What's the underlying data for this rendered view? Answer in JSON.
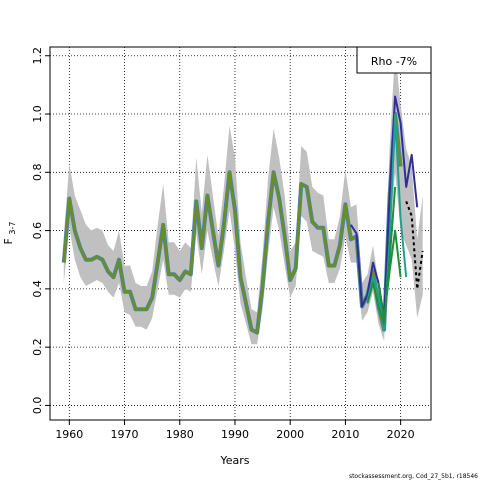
{
  "chart_data": {
    "type": "line",
    "xlabel": "Years",
    "ylabel_main": "F",
    "ylabel_sub": "3-7",
    "xlim": [
      1956.5,
      2025.5
    ],
    "ylim": [
      -0.05,
      1.23
    ],
    "x_ticks": [
      1960,
      1970,
      1980,
      1990,
      2000,
      2010,
      2020
    ],
    "y_ticks": [
      0.0,
      0.2,
      0.4,
      0.6,
      0.8,
      1.0,
      1.2
    ],
    "y_tick_labels": [
      "0.0",
      "0.2",
      "0.4",
      "0.6",
      "0.8",
      "1.0",
      "1.2"
    ],
    "grid": true,
    "legend": {
      "text": "Rho -7%",
      "placement": "top-right"
    },
    "footer": "stockassessment.org, Cod_27_5b1, r18546",
    "colors": {
      "band": "#c0c0c0",
      "main": "#6b8e23",
      "main_outline": "#4682b4",
      "retro_green": "#1f8f3a",
      "retro_blue": "#2f2f9a",
      "retro_teal": "#20a090",
      "forecast": "#000000"
    },
    "series": [
      {
        "x": [
          1959,
          1960,
          1961,
          1962,
          1963,
          1964,
          1965,
          1966,
          1967,
          1968,
          1969,
          1970,
          1971,
          1972,
          1973,
          1974,
          1975,
          1976,
          1977,
          1978,
          1979,
          1980,
          1981,
          1982,
          1983,
          1984,
          1985,
          1986,
          1987,
          1988,
          1989,
          1990,
          1991,
          1992,
          1993,
          1994,
          1995,
          1996,
          1997,
          1998,
          1999,
          2000,
          2001,
          2002,
          2003,
          2004,
          2005,
          2006,
          2007,
          2008,
          2009,
          2010,
          2011,
          2012,
          2013,
          2014,
          2015,
          2016,
          2017,
          2018,
          2019,
          2020
        ],
        "y": [
          0.49,
          0.71,
          0.6,
          0.54,
          0.5,
          0.5,
          0.51,
          0.5,
          0.46,
          0.44,
          0.5,
          0.39,
          0.39,
          0.33,
          0.33,
          0.33,
          0.37,
          0.49,
          0.62,
          0.45,
          0.45,
          0.43,
          0.46,
          0.45,
          0.7,
          0.54,
          0.72,
          0.6,
          0.48,
          0.62,
          0.8,
          0.67,
          0.44,
          0.35,
          0.26,
          0.25,
          0.41,
          0.63,
          0.8,
          0.71,
          0.58,
          0.43,
          0.47,
          0.76,
          0.75,
          0.63,
          0.61,
          0.61,
          0.48,
          0.48,
          0.55,
          0.69,
          0.57,
          0.58,
          0.34,
          0.38,
          0.46,
          0.34,
          0.26,
          0.72,
          1.0,
          0.82
        ]
      },
      {
        "x": [
          2011,
          2012,
          2013,
          2014,
          2015,
          2016,
          2017,
          2018,
          2019,
          2020,
          2021,
          2022,
          2023
        ],
        "y": [
          0.62,
          0.59,
          0.34,
          0.38,
          0.49,
          0.42,
          0.3,
          0.72,
          1.06,
          0.97,
          0.75,
          0.86,
          0.68
        ]
      },
      {
        "x": [
          2014,
          2015,
          2016,
          2017,
          2018,
          2019,
          2020,
          2021
        ],
        "y": [
          0.36,
          0.44,
          0.38,
          0.26,
          0.56,
          1.0,
          0.64,
          0.44
        ]
      },
      {
        "x": [
          2014,
          2015,
          2016,
          2017,
          2018,
          2019
        ],
        "y": [
          0.35,
          0.42,
          0.34,
          0.28,
          0.5,
          0.75
        ]
      },
      {
        "x": [
          2016,
          2017,
          2018,
          2019,
          2020
        ],
        "y": [
          0.42,
          0.3,
          0.46,
          0.6,
          0.44
        ]
      },
      {
        "x": [
          2021,
          2022,
          2023,
          2024
        ],
        "y": [
          0.7,
          0.65,
          0.4,
          0.53
        ]
      }
    ],
    "band": {
      "x": [
        1959,
        1960,
        1961,
        1962,
        1963,
        1964,
        1965,
        1966,
        1967,
        1968,
        1969,
        1970,
        1971,
        1972,
        1973,
        1974,
        1975,
        1976,
        1977,
        1978,
        1979,
        1980,
        1981,
        1982,
        1983,
        1984,
        1985,
        1986,
        1987,
        1988,
        1989,
        1990,
        1991,
        1992,
        1993,
        1994,
        1995,
        1996,
        1997,
        1998,
        1999,
        2000,
        2001,
        2002,
        2003,
        2004,
        2005,
        2006,
        2007,
        2008,
        2009,
        2010,
        2011,
        2012,
        2013,
        2014,
        2015,
        2016,
        2017,
        2018,
        2019,
        2020,
        2021,
        2022,
        2023,
        2024
      ],
      "lower": [
        0.42,
        0.61,
        0.5,
        0.44,
        0.41,
        0.42,
        0.43,
        0.42,
        0.39,
        0.37,
        0.42,
        0.32,
        0.31,
        0.27,
        0.27,
        0.26,
        0.3,
        0.4,
        0.5,
        0.38,
        0.38,
        0.37,
        0.4,
        0.39,
        0.59,
        0.45,
        0.6,
        0.5,
        0.41,
        0.53,
        0.67,
        0.53,
        0.35,
        0.28,
        0.21,
        0.21,
        0.33,
        0.52,
        0.68,
        0.6,
        0.48,
        0.37,
        0.41,
        0.65,
        0.63,
        0.53,
        0.52,
        0.51,
        0.42,
        0.42,
        0.47,
        0.58,
        0.49,
        0.49,
        0.29,
        0.32,
        0.39,
        0.28,
        0.22,
        0.58,
        0.8,
        0.6,
        0.55,
        0.5,
        0.3,
        0.38
      ],
      "upper": [
        0.58,
        0.83,
        0.72,
        0.67,
        0.62,
        0.6,
        0.61,
        0.6,
        0.55,
        0.53,
        0.6,
        0.48,
        0.48,
        0.42,
        0.41,
        0.41,
        0.46,
        0.62,
        0.76,
        0.56,
        0.56,
        0.53,
        0.56,
        0.54,
        0.85,
        0.66,
        0.86,
        0.72,
        0.58,
        0.75,
        0.96,
        0.85,
        0.56,
        0.44,
        0.33,
        0.32,
        0.52,
        0.78,
        0.95,
        0.85,
        0.72,
        0.53,
        0.56,
        0.89,
        0.87,
        0.75,
        0.73,
        0.72,
        0.57,
        0.57,
        0.65,
        0.81,
        0.68,
        0.69,
        0.42,
        0.45,
        0.55,
        0.42,
        0.33,
        0.88,
        1.22,
        1.03,
        0.88,
        0.82,
        0.57,
        0.72
      ]
    }
  }
}
